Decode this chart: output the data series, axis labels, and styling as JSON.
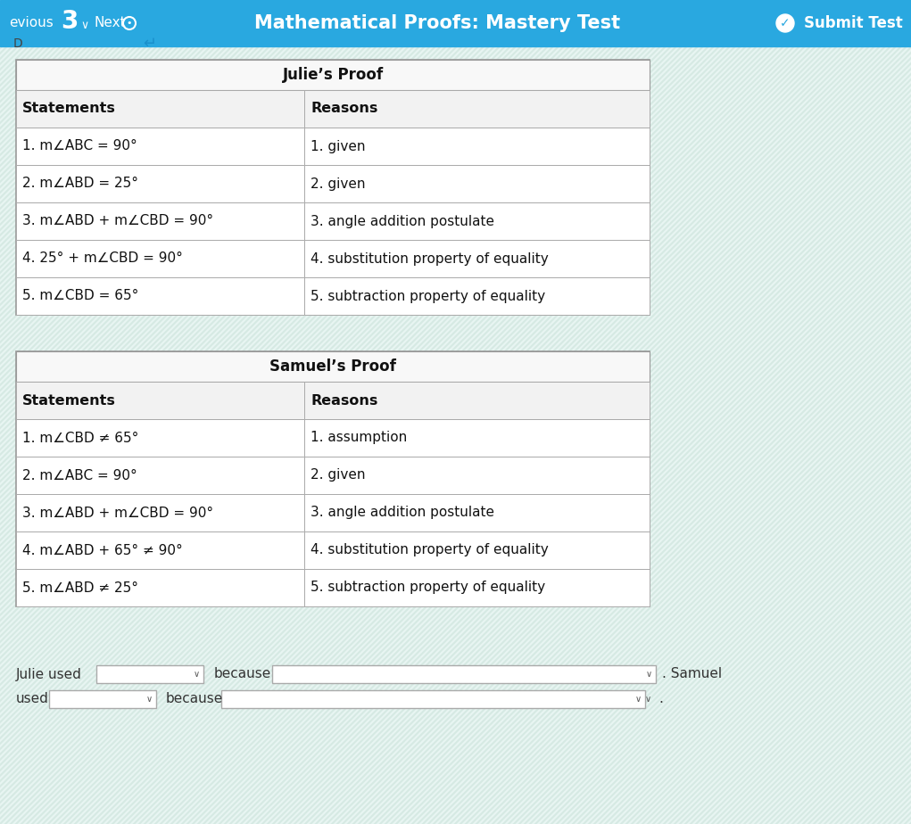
{
  "header_bg": "#29a8e0",
  "header_text_color": "#ffffff",
  "header_title": "Mathematical Proofs: Mastery Test",
  "page_bg_light": "#e8f5f2",
  "page_bg_stripe1": "#d0e8e2",
  "page_bg_stripe2": "#f0faf8",
  "table_bg": "#ffffff",
  "table_border": "#aaaaaa",
  "header_row_bg": "#f2f2f2",
  "julie_title": "Julie’s Proof",
  "julie_statements": [
    "Statements",
    "1. m∠ABC = 90°",
    "2. m∠ABD = 25°",
    "3. m∠ABD + m∠CBD = 90°",
    "4. 25° + m∠CBD = 90°",
    "5. m∠CBD = 65°"
  ],
  "julie_reasons": [
    "Reasons",
    "1. given",
    "2. given",
    "3. angle addition postulate",
    "4. substitution property of equality",
    "5. subtraction property of equality"
  ],
  "samuel_title": "Samuel’s Proof",
  "samuel_statements": [
    "Statements",
    "1. m∠CBD ≠ 65°",
    "2. m∠ABC = 90°",
    "3. m∠ABD + m∠CBD = 90°",
    "4. m∠ABD + 65° ≠ 90°",
    "5. m∠ABD ≠ 25°"
  ],
  "samuel_reasons": [
    "Reasons",
    "1. assumption",
    "2. given",
    "3. angle addition postulate",
    "4. substitution property of equality",
    "5. subtraction property of equality"
  ],
  "bottom_text_1": "Julie used",
  "bottom_text_2": "because",
  "bottom_text_3": ". Samuel",
  "bottom_text_4": "used",
  "bottom_text_5": "because"
}
